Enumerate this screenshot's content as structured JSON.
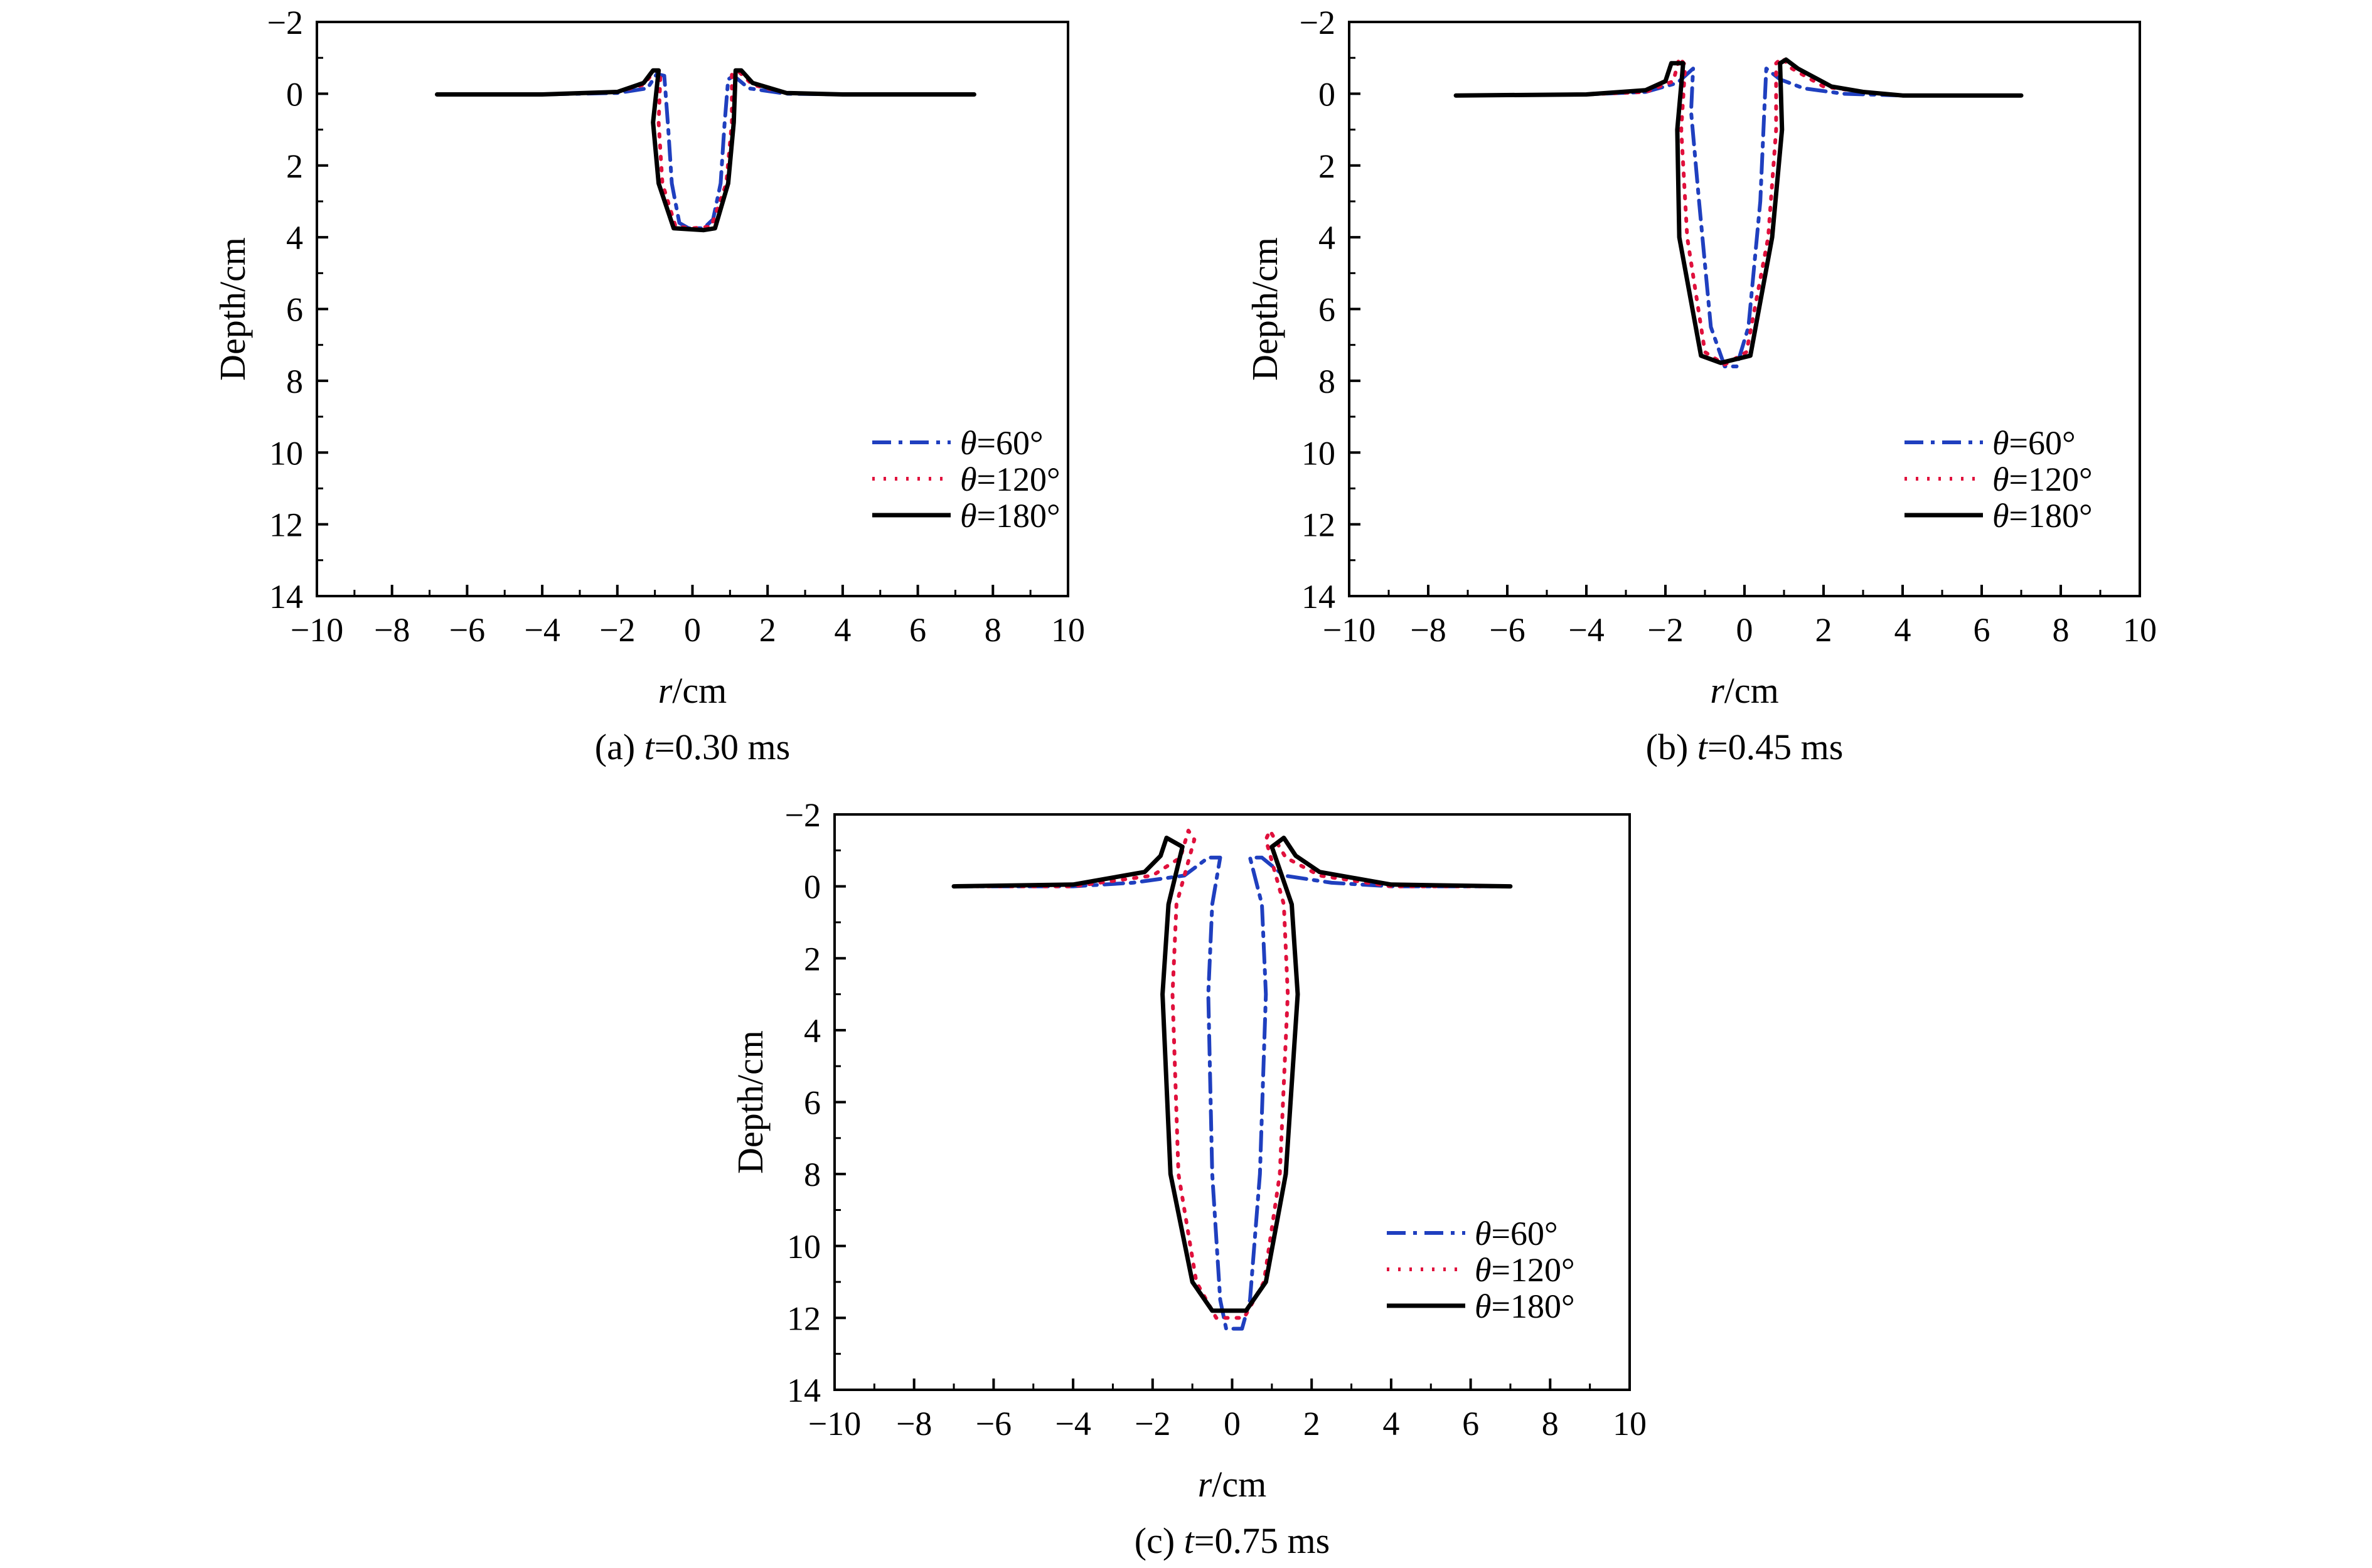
{
  "chart_data": [
    {
      "type": "line",
      "caption": {
        "label": "(a) ",
        "var": "t",
        "value": "=0.30 ms"
      },
      "xlabel": {
        "var": "r",
        "unit": "/cm"
      },
      "ylabel": "Depth/cm",
      "xlim": [
        -10,
        10
      ],
      "ylim": [
        -2,
        14
      ],
      "y_inverted": true,
      "xticks": [
        -10,
        -8,
        -6,
        -4,
        -2,
        0,
        2,
        4,
        6,
        8,
        10
      ],
      "yticks": [
        -2,
        0,
        2,
        4,
        6,
        8,
        10,
        12,
        14
      ],
      "legend_position": "right",
      "series": [
        {
          "name": "θ=60°",
          "sym": "θ",
          "rest": "=60°",
          "color": "#1f3fbf",
          "style": "dashdot",
          "points": [
            [
              -6.8,
              0.02
            ],
            [
              -4,
              0.02
            ],
            [
              -2,
              -0.02
            ],
            [
              -1.2,
              -0.15
            ],
            [
              -0.95,
              -0.55
            ],
            [
              -0.75,
              -0.5
            ],
            [
              -0.65,
              0.9
            ],
            [
              -0.55,
              2.5
            ],
            [
              -0.35,
              3.6
            ],
            [
              -0.1,
              3.75
            ],
            [
              0.3,
              3.75
            ],
            [
              0.55,
              3.5
            ],
            [
              0.75,
              2.5
            ],
            [
              0.85,
              0.9
            ],
            [
              0.95,
              -0.4
            ],
            [
              1.1,
              -0.5
            ],
            [
              1.5,
              -0.15
            ],
            [
              2.5,
              0
            ],
            [
              4,
              0.02
            ],
            [
              7.5,
              0.02
            ]
          ]
        },
        {
          "name": "θ=120°",
          "sym": "θ",
          "rest": "=120°",
          "color": "#e0103c",
          "style": "dotted",
          "points": [
            [
              -6.8,
              0.02
            ],
            [
              -4,
              0.02
            ],
            [
              -2,
              -0.05
            ],
            [
              -1.3,
              -0.25
            ],
            [
              -1.0,
              -0.65
            ],
            [
              -0.85,
              -0.6
            ],
            [
              -0.9,
              0.8
            ],
            [
              -0.8,
              2.5
            ],
            [
              -0.45,
              3.7
            ],
            [
              0,
              3.75
            ],
            [
              0.5,
              3.7
            ],
            [
              0.9,
              2.5
            ],
            [
              1.05,
              0.8
            ],
            [
              1.05,
              -0.55
            ],
            [
              1.25,
              -0.6
            ],
            [
              1.6,
              -0.25
            ],
            [
              2.5,
              -0.02
            ],
            [
              4,
              0.02
            ],
            [
              7.5,
              0.02
            ]
          ]
        },
        {
          "name": "θ=180°",
          "sym": "θ",
          "rest": "=180°",
          "color": "#000000",
          "style": "solid",
          "points": [
            [
              -6.8,
              0.02
            ],
            [
              -4,
              0.02
            ],
            [
              -2,
              -0.05
            ],
            [
              -1.3,
              -0.3
            ],
            [
              -1.05,
              -0.65
            ],
            [
              -0.9,
              -0.65
            ],
            [
              -1.05,
              0.8
            ],
            [
              -0.9,
              2.5
            ],
            [
              -0.5,
              3.75
            ],
            [
              0.3,
              3.8
            ],
            [
              0.6,
              3.75
            ],
            [
              0.95,
              2.5
            ],
            [
              1.1,
              0.8
            ],
            [
              1.15,
              -0.65
            ],
            [
              1.3,
              -0.65
            ],
            [
              1.6,
              -0.3
            ],
            [
              2.5,
              -0.02
            ],
            [
              4,
              0.02
            ],
            [
              7.5,
              0.02
            ]
          ]
        }
      ]
    },
    {
      "type": "line",
      "caption": {
        "label": "(b) ",
        "var": "t",
        "value": "=0.45 ms"
      },
      "xlabel": {
        "var": "r",
        "unit": "/cm"
      },
      "ylabel": "Depth/cm",
      "xlim": [
        -10,
        10
      ],
      "ylim": [
        -2,
        14
      ],
      "y_inverted": true,
      "xticks": [
        -10,
        -8,
        -6,
        -4,
        -2,
        0,
        2,
        4,
        6,
        8,
        10
      ],
      "yticks": [
        -2,
        0,
        2,
        4,
        6,
        8,
        10,
        12,
        14
      ],
      "legend_position": "right",
      "series": [
        {
          "name": "θ=60°",
          "sym": "θ",
          "rest": "=60°",
          "color": "#1f3fbf",
          "style": "dashdot",
          "points": [
            [
              -7.3,
              0.05
            ],
            [
              -4,
              0.02
            ],
            [
              -2.5,
              -0.05
            ],
            [
              -1.7,
              -0.3
            ],
            [
              -1.3,
              -0.7
            ],
            [
              -1.35,
              0.5
            ],
            [
              -1.15,
              3
            ],
            [
              -0.85,
              6.5
            ],
            [
              -0.5,
              7.6
            ],
            [
              -0.2,
              7.6
            ],
            [
              0.1,
              6.5
            ],
            [
              0.4,
              3
            ],
            [
              0.5,
              0.5
            ],
            [
              0.55,
              -0.7
            ],
            [
              0.9,
              -0.4
            ],
            [
              1.5,
              -0.15
            ],
            [
              2.5,
              0
            ],
            [
              4,
              0.05
            ],
            [
              7,
              0.05
            ]
          ]
        },
        {
          "name": "θ=120°",
          "sym": "θ",
          "rest": "=120°",
          "color": "#e0103c",
          "style": "dotted",
          "points": [
            [
              -7.3,
              0.05
            ],
            [
              -4,
              0.02
            ],
            [
              -2.5,
              -0.05
            ],
            [
              -1.8,
              -0.35
            ],
            [
              -1.65,
              -1.0
            ],
            [
              -1.5,
              -0.8
            ],
            [
              -1.6,
              1
            ],
            [
              -1.45,
              4
            ],
            [
              -1.0,
              7.2
            ],
            [
              -0.5,
              7.55
            ],
            [
              0.05,
              7.2
            ],
            [
              0.6,
              4
            ],
            [
              0.8,
              1
            ],
            [
              0.8,
              -0.85
            ],
            [
              0.95,
              -1.0
            ],
            [
              1.2,
              -0.7
            ],
            [
              2,
              -0.2
            ],
            [
              3,
              -0.05
            ],
            [
              4,
              0.05
            ],
            [
              7,
              0.05
            ]
          ]
        },
        {
          "name": "θ=180°",
          "sym": "θ",
          "rest": "=180°",
          "color": "#000000",
          "style": "solid",
          "points": [
            [
              -7.3,
              0.05
            ],
            [
              -4,
              0.02
            ],
            [
              -2.5,
              -0.1
            ],
            [
              -2,
              -0.35
            ],
            [
              -1.85,
              -0.85
            ],
            [
              -1.55,
              -0.85
            ],
            [
              -1.7,
              1
            ],
            [
              -1.65,
              4
            ],
            [
              -1.1,
              7.3
            ],
            [
              -0.6,
              7.5
            ],
            [
              0.15,
              7.3
            ],
            [
              0.7,
              4
            ],
            [
              0.95,
              1
            ],
            [
              0.9,
              -0.85
            ],
            [
              1.05,
              -0.95
            ],
            [
              1.35,
              -0.7
            ],
            [
              2.2,
              -0.2
            ],
            [
              3,
              -0.05
            ],
            [
              4,
              0.05
            ],
            [
              7,
              0.05
            ]
          ]
        }
      ]
    },
    {
      "type": "line",
      "caption": {
        "label": "(c) ",
        "var": "t",
        "value": "=0.75 ms"
      },
      "xlabel": {
        "var": "r",
        "unit": "/cm"
      },
      "ylabel": "Depth/cm",
      "xlim": [
        -10,
        10
      ],
      "ylim": [
        -2,
        14
      ],
      "y_inverted": true,
      "xticks": [
        -10,
        -8,
        -6,
        -4,
        -2,
        0,
        2,
        4,
        6,
        8,
        10
      ],
      "yticks": [
        -2,
        0,
        2,
        4,
        6,
        8,
        10,
        12,
        14
      ],
      "legend_position": "right",
      "series": [
        {
          "name": "θ=60°",
          "sym": "θ",
          "rest": "=60°",
          "color": "#1f3fbf",
          "style": "dashdot",
          "points": [
            [
              -7,
              0
            ],
            [
              -4,
              0
            ],
            [
              -2.5,
              -0.1
            ],
            [
              -1.2,
              -0.3
            ],
            [
              -0.6,
              -0.8
            ],
            [
              -0.3,
              -0.8
            ],
            [
              -0.5,
              0.5
            ],
            [
              -0.6,
              3
            ],
            [
              -0.5,
              8
            ],
            [
              -0.3,
              11.5
            ],
            [
              -0.15,
              12.3
            ],
            [
              0.25,
              12.3
            ],
            [
              0.45,
              11.5
            ],
            [
              0.7,
              8
            ],
            [
              0.85,
              3
            ],
            [
              0.75,
              0.5
            ],
            [
              0.45,
              -0.8
            ],
            [
              0.75,
              -0.8
            ],
            [
              1.3,
              -0.3
            ],
            [
              2.5,
              -0.1
            ],
            [
              4,
              0
            ],
            [
              7,
              0
            ]
          ]
        },
        {
          "name": "θ=120°",
          "sym": "θ",
          "rest": "=120°",
          "color": "#e0103c",
          "style": "dotted",
          "points": [
            [
              -7,
              0
            ],
            [
              -4,
              0
            ],
            [
              -2,
              -0.3
            ],
            [
              -1.3,
              -0.8
            ],
            [
              -1.1,
              -1.55
            ],
            [
              -0.95,
              -1.3
            ],
            [
              -1.4,
              0.5
            ],
            [
              -1.5,
              3
            ],
            [
              -1.35,
              8
            ],
            [
              -0.9,
              11
            ],
            [
              -0.4,
              12
            ],
            [
              0.3,
              12
            ],
            [
              0.8,
              11
            ],
            [
              1.2,
              8
            ],
            [
              1.4,
              3
            ],
            [
              1.3,
              0.5
            ],
            [
              0.85,
              -1.3
            ],
            [
              0.95,
              -1.55
            ],
            [
              1.35,
              -0.8
            ],
            [
              2.2,
              -0.3
            ],
            [
              4,
              0
            ],
            [
              7,
              0
            ]
          ]
        },
        {
          "name": "θ=180°",
          "sym": "θ",
          "rest": "=180°",
          "color": "#000000",
          "style": "solid",
          "points": [
            [
              -7,
              0
            ],
            [
              -4,
              -0.05
            ],
            [
              -2.2,
              -0.4
            ],
            [
              -1.8,
              -0.85
            ],
            [
              -1.65,
              -1.35
            ],
            [
              -1.25,
              -1.1
            ],
            [
              -1.6,
              0.5
            ],
            [
              -1.75,
              3
            ],
            [
              -1.55,
              8
            ],
            [
              -1.0,
              11
            ],
            [
              -0.5,
              11.8
            ],
            [
              0.35,
              11.8
            ],
            [
              0.85,
              11
            ],
            [
              1.35,
              8
            ],
            [
              1.65,
              3
            ],
            [
              1.5,
              0.5
            ],
            [
              1.0,
              -1.1
            ],
            [
              1.3,
              -1.35
            ],
            [
              1.6,
              -0.85
            ],
            [
              2.2,
              -0.4
            ],
            [
              4,
              -0.05
            ],
            [
              7,
              0
            ]
          ]
        }
      ]
    }
  ]
}
